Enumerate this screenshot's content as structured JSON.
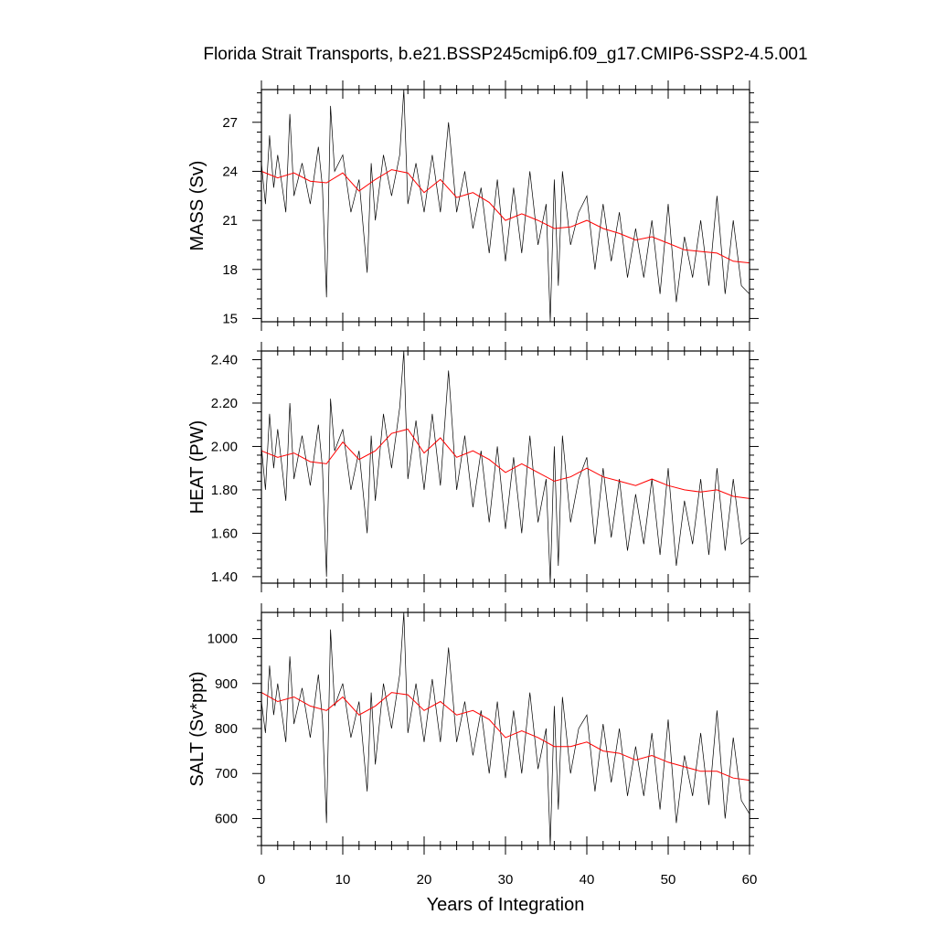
{
  "chart_data": {
    "type": "line",
    "title": "Florida Strait Transports, b.e21.BSSP245cmip6.f09_g17.CMIP6-SSP2-4.5.001",
    "xlabel": "Years of Integration",
    "xlim": [
      0,
      60
    ],
    "xticks": [
      "0",
      "10",
      "20",
      "30",
      "40",
      "50",
      "60"
    ],
    "colors": {
      "raw": "#000000",
      "smooth": "#ff0000"
    },
    "panels": [
      {
        "ylabel": "MASS (Sv)",
        "ylim": [
          14.8,
          29.0
        ],
        "yticks": [
          "15",
          "18",
          "21",
          "24",
          "27"
        ],
        "ytick_values": [
          15,
          18,
          21,
          24,
          27
        ],
        "series": [
          {
            "style": "raw",
            "x": [
              0,
              0.5,
              1,
              1.5,
              2,
              3,
              3.5,
              4,
              5,
              6,
              7,
              7.5,
              8,
              8.5,
              9,
              10,
              11,
              12,
              13,
              13.5,
              14,
              15,
              16,
              17,
              17.5,
              18,
              19,
              20,
              21,
              22,
              23,
              24,
              25,
              26,
              27,
              28,
              29,
              30,
              31,
              32,
              33,
              34,
              35,
              35.5,
              36,
              36.5,
              37,
              38,
              39,
              40,
              41,
              42,
              43,
              44,
              45,
              46,
              47,
              48,
              49,
              50,
              51,
              52,
              53,
              54,
              55,
              56,
              57,
              58,
              59,
              60
            ],
            "y": [
              24.5,
              22.0,
              26.2,
              23.0,
              25.0,
              21.5,
              27.5,
              22.5,
              24.5,
              22.0,
              25.5,
              23.0,
              16.3,
              28.0,
              24.0,
              25.0,
              21.5,
              23.5,
              17.8,
              24.5,
              21.0,
              25.0,
              22.5,
              25.0,
              29.0,
              22.0,
              24.5,
              21.5,
              25.0,
              21.5,
              27.0,
              21.5,
              24.0,
              20.5,
              23.0,
              19.0,
              23.5,
              18.5,
              23.0,
              19.0,
              24.0,
              19.5,
              22.0,
              14.8,
              23.5,
              17.0,
              24.0,
              19.5,
              21.5,
              22.5,
              18.0,
              22.0,
              18.5,
              21.5,
              17.5,
              20.5,
              17.5,
              21.0,
              16.5,
              22.0,
              16.0,
              20.0,
              17.5,
              21.0,
              17.0,
              22.5,
              16.5,
              21.0,
              17.0,
              16.5
            ]
          },
          {
            "style": "smooth",
            "x": [
              0,
              2,
              4,
              6,
              8,
              10,
              12,
              14,
              16,
              18,
              20,
              22,
              24,
              26,
              28,
              30,
              32,
              34,
              36,
              38,
              40,
              42,
              44,
              46,
              48,
              50,
              52,
              54,
              56,
              58,
              60
            ],
            "y": [
              24.0,
              23.6,
              23.9,
              23.4,
              23.3,
              23.9,
              22.8,
              23.5,
              24.1,
              23.9,
              22.7,
              23.5,
              22.4,
              22.7,
              22.1,
              21.0,
              21.4,
              21.0,
              20.5,
              20.6,
              21.0,
              20.5,
              20.2,
              19.8,
              20.0,
              19.6,
              19.2,
              19.1,
              19.0,
              18.5,
              18.4
            ]
          }
        ]
      },
      {
        "ylabel": "HEAT (PW)",
        "ylim": [
          1.37,
          2.44
        ],
        "yticks": [
          "1.40",
          "1.60",
          "1.80",
          "2.00",
          "2.20",
          "2.40"
        ],
        "ytick_values": [
          1.4,
          1.6,
          1.8,
          2.0,
          2.2,
          2.4
        ],
        "series": [
          {
            "style": "raw",
            "x": [
              0,
              0.5,
              1,
              1.5,
              2,
              3,
              3.5,
              4,
              5,
              6,
              7,
              7.5,
              8,
              8.5,
              9,
              10,
              11,
              12,
              13,
              13.5,
              14,
              15,
              16,
              17,
              17.5,
              18,
              19,
              20,
              21,
              22,
              23,
              24,
              25,
              26,
              27,
              28,
              29,
              30,
              31,
              32,
              33,
              34,
              35,
              35.5,
              36,
              36.5,
              37,
              38,
              39,
              40,
              41,
              42,
              43,
              44,
              45,
              46,
              47,
              48,
              49,
              50,
              51,
              52,
              53,
              54,
              55,
              56,
              57,
              58,
              59,
              60
            ],
            "y": [
              2.0,
              1.8,
              2.15,
              1.9,
              2.08,
              1.75,
              2.2,
              1.85,
              2.05,
              1.82,
              2.1,
              1.9,
              1.4,
              2.22,
              1.98,
              2.08,
              1.8,
              1.98,
              1.6,
              2.05,
              1.75,
              2.15,
              1.9,
              2.18,
              2.44,
              1.85,
              2.12,
              1.8,
              2.15,
              1.82,
              2.35,
              1.8,
              2.05,
              1.72,
              1.98,
              1.65,
              2.0,
              1.62,
              1.95,
              1.6,
              2.05,
              1.65,
              1.85,
              1.37,
              2.0,
              1.45,
              2.05,
              1.65,
              1.85,
              1.95,
              1.55,
              1.9,
              1.58,
              1.85,
              1.52,
              1.78,
              1.55,
              1.85,
              1.5,
              1.9,
              1.45,
              1.75,
              1.55,
              1.85,
              1.5,
              1.9,
              1.52,
              1.85,
              1.55,
              1.58
            ]
          },
          {
            "style": "smooth",
            "x": [
              0,
              2,
              4,
              6,
              8,
              10,
              12,
              14,
              16,
              18,
              20,
              22,
              24,
              26,
              28,
              30,
              32,
              34,
              36,
              38,
              40,
              42,
              44,
              46,
              48,
              50,
              52,
              54,
              56,
              58,
              60
            ],
            "y": [
              1.98,
              1.95,
              1.97,
              1.93,
              1.92,
              2.02,
              1.94,
              1.98,
              2.06,
              2.08,
              1.97,
              2.04,
              1.95,
              1.98,
              1.94,
              1.88,
              1.92,
              1.88,
              1.84,
              1.86,
              1.9,
              1.86,
              1.84,
              1.82,
              1.85,
              1.82,
              1.8,
              1.79,
              1.8,
              1.77,
              1.76
            ]
          }
        ]
      },
      {
        "ylabel": "SALT (Sv*ppt)",
        "ylim": [
          540,
          1058
        ],
        "yticks": [
          "600",
          "700",
          "800",
          "900",
          "1000"
        ],
        "ytick_values": [
          600,
          700,
          800,
          900,
          1000
        ],
        "series": [
          {
            "style": "raw",
            "x": [
              0,
              0.5,
              1,
              1.5,
              2,
              3,
              3.5,
              4,
              5,
              6,
              7,
              7.5,
              8,
              8.5,
              9,
              10,
              11,
              12,
              13,
              13.5,
              14,
              15,
              16,
              17,
              17.5,
              18,
              19,
              20,
              21,
              22,
              23,
              24,
              25,
              26,
              27,
              28,
              29,
              30,
              31,
              32,
              33,
              34,
              35,
              35.5,
              36,
              36.5,
              37,
              38,
              39,
              40,
              41,
              42,
              43,
              44,
              45,
              46,
              47,
              48,
              49,
              50,
              51,
              52,
              53,
              54,
              55,
              56,
              57,
              58,
              59,
              60
            ],
            "y": [
              860,
              790,
              940,
              830,
              900,
              770,
              960,
              810,
              890,
              780,
              920,
              820,
              590,
              1020,
              850,
              900,
              780,
              860,
              660,
              880,
              720,
              900,
              800,
              920,
              1058,
              790,
              900,
              770,
              910,
              770,
              980,
              770,
              860,
              740,
              840,
              700,
              860,
              690,
              840,
              700,
              880,
              710,
              800,
              540,
              850,
              620,
              870,
              700,
              800,
              830,
              660,
              810,
              680,
              800,
              650,
              760,
              650,
              790,
              620,
              820,
              590,
              740,
              650,
              790,
              630,
              840,
              600,
              780,
              640,
              610
            ]
          },
          {
            "style": "smooth",
            "x": [
              0,
              2,
              4,
              6,
              8,
              10,
              12,
              14,
              16,
              18,
              20,
              22,
              24,
              26,
              28,
              30,
              32,
              34,
              36,
              38,
              40,
              42,
              44,
              46,
              48,
              50,
              52,
              54,
              56,
              58,
              60
            ],
            "y": [
              880,
              860,
              870,
              850,
              840,
              870,
              830,
              850,
              880,
              875,
              840,
              860,
              830,
              840,
              820,
              780,
              795,
              780,
              760,
              760,
              770,
              750,
              745,
              730,
              740,
              725,
              715,
              705,
              705,
              690,
              685
            ]
          }
        ]
      }
    ]
  }
}
